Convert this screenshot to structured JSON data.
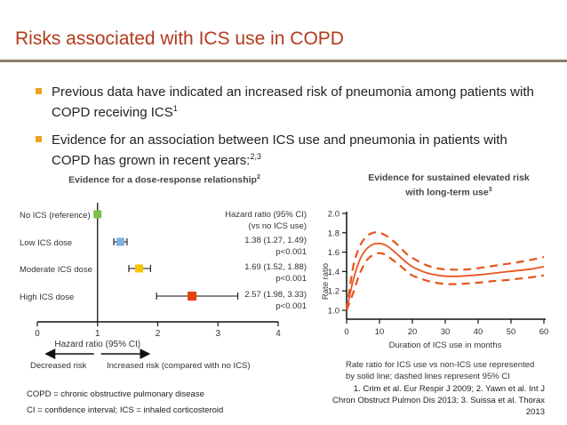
{
  "slide": {
    "title": "Risks associated with ICS use in COPD",
    "bullets": [
      {
        "text": "Previous data have indicated an increased risk of pneumonia among patients with COPD receiving ICS",
        "sup": "1"
      },
      {
        "text": "Evidence for an association between ICS use and pneumonia in patients with COPD has grown in recent years:",
        "sup": "2,3"
      }
    ],
    "left_heading": "Evidence for a dose-response relationship",
    "left_heading_sup": "2",
    "right_heading_line1": "Evidence for sustained elevated risk",
    "right_heading_line2": "with long-term use",
    "right_heading_sup": "3",
    "footnote_1": "COPD = chronic obstructive pulmonary disease",
    "footnote_2": "CI = confidence interval; ICS = inhaled corticosteroid",
    "references": [
      "1. Crim et al. Eur Respir J 2009; 2. Yawn et al. Int J",
      "Chron Obstruct Pulmon Dis 2013; 3. Suissa et al. Thorax",
      "2013"
    ]
  },
  "chart_data": [
    {
      "type": "forest",
      "xlabel": "Hazard ratio (95% CI)",
      "xlim": [
        0,
        4
      ],
      "xticks": [
        "0",
        "1",
        "2",
        "3",
        "4"
      ],
      "reference_line": 1,
      "column_header_line1": "Hazard ratio (95% CI)",
      "column_header_line2": "(vs no ICS use)",
      "arrow_left_label": "Decreased risk",
      "arrow_right_label": "Increased risk (compared with no ICS)",
      "rows": [
        {
          "label": "No ICS (reference)",
          "hr": 1.0,
          "lo": 1.0,
          "hi": 1.0,
          "color": "#7ac143",
          "text1": "",
          "text2": ""
        },
        {
          "label": "Low ICS dose",
          "hr": 1.38,
          "lo": 1.27,
          "hi": 1.49,
          "color": "#7eb3e0",
          "text1": "1.38 (1.27, 1.49)",
          "text2": "p<0.001"
        },
        {
          "label": "Moderate ICS dose",
          "hr": 1.69,
          "lo": 1.52,
          "hi": 1.88,
          "color": "#f5c400",
          "text1": "1.69 (1.52, 1.88)",
          "text2": "p<0.001"
        },
        {
          "label": "High ICS dose",
          "hr": 2.57,
          "lo": 1.98,
          "hi": 3.33,
          "color": "#e8400c",
          "text1": "2.57 (1.98, 3.33)",
          "text2": "p<0.001"
        }
      ]
    },
    {
      "type": "line",
      "xlabel": "Duration of ICS use in months",
      "ylabel": "Rate ratio",
      "xlim": [
        0,
        60
      ],
      "ylim": [
        1.0,
        2.0
      ],
      "xticks": [
        "0",
        "10",
        "20",
        "30",
        "40",
        "50",
        "60"
      ],
      "yticks": [
        "1.0",
        "1.2",
        "1.4",
        "1.6",
        "1.8",
        "2.0"
      ],
      "color": "#e8541e",
      "x": [
        0,
        2,
        4,
        6,
        8,
        10,
        12,
        14,
        16,
        18,
        20,
        24,
        28,
        32,
        36,
        40,
        44,
        48,
        52,
        56,
        60
      ],
      "series": [
        {
          "role": "estimate",
          "values": [
            1.0,
            1.31,
            1.52,
            1.63,
            1.68,
            1.69,
            1.67,
            1.62,
            1.56,
            1.5,
            1.45,
            1.39,
            1.36,
            1.35,
            1.355,
            1.365,
            1.38,
            1.395,
            1.41,
            1.425,
            1.45
          ]
        },
        {
          "role": "upper",
          "values": [
            1.0,
            1.45,
            1.66,
            1.76,
            1.8,
            1.8,
            1.77,
            1.72,
            1.66,
            1.59,
            1.54,
            1.47,
            1.43,
            1.42,
            1.42,
            1.435,
            1.455,
            1.475,
            1.495,
            1.52,
            1.55
          ]
        },
        {
          "role": "lower",
          "values": [
            1.0,
            1.18,
            1.38,
            1.51,
            1.57,
            1.59,
            1.57,
            1.52,
            1.47,
            1.41,
            1.36,
            1.31,
            1.28,
            1.27,
            1.275,
            1.285,
            1.3,
            1.31,
            1.325,
            1.34,
            1.36
          ]
        }
      ],
      "caption": [
        "Rate ratio for ICS use vs non-ICS use represented",
        "by solid line; dashed lines represent 95% CI"
      ]
    }
  ]
}
